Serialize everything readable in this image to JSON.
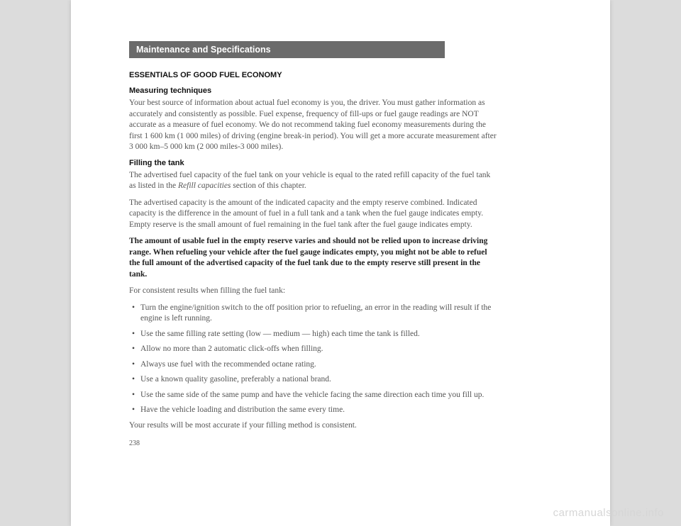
{
  "header": "Maintenance and Specifications",
  "title": "ESSENTIALS OF GOOD FUEL ECONOMY",
  "s1_head": "Measuring techniques",
  "s1_p1": "Your best source of information about actual fuel economy is you, the driver. You must gather information as accurately and consistently as possible. Fuel expense, frequency of fill-ups or fuel gauge readings are NOT accurate as a measure of fuel economy. We do not recommend taking fuel economy measurements during the first 1 600 km (1 000 miles) of driving (engine break-in period). You will get a more accurate measurement after 3 000 km–5 000 km (2 000 miles-3 000 miles).",
  "s2_head": "Filling the tank",
  "s2_p1a": "The advertised fuel capacity of the fuel tank on your vehicle is equal to the rated refill capacity of the fuel tank as listed in the ",
  "s2_p1b": "Refill capacities",
  "s2_p1c": " section of this chapter.",
  "s2_p2": "The advertised capacity is the amount of the indicated capacity and the empty reserve combined. Indicated capacity is the difference in the amount of fuel in a full tank and a tank when the fuel gauge indicates empty. Empty reserve is the small amount of fuel remaining in the fuel tank after the fuel gauge indicates empty.",
  "s2_bold": "The amount of usable fuel in the empty reserve varies and should not be relied upon to increase driving range. When refueling your vehicle after the fuel gauge indicates empty, you might not be able to refuel the full amount of the advertised capacity of the fuel tank due to the empty reserve still present in the tank.",
  "s2_p3": "For consistent results when filling the fuel tank:",
  "bullets": [
    "Turn the engine/ignition switch to the off position prior to refueling, an error in the reading will result if the engine is left running.",
    "Use the same filling rate setting (low — medium — high) each time the tank is filled.",
    "Allow no more than 2 automatic click-offs when filling.",
    "Always use fuel with the recommended octane rating.",
    "Use a known quality gasoline, preferably a national brand.",
    "Use the same side of the same pump and have the vehicle facing the same direction each time you fill up.",
    "Have the vehicle loading and distribution the same every time."
  ],
  "s2_p4": "Your results will be most accurate if your filling method is consistent.",
  "page_num": "238",
  "watermark": "carmanualsonline.info"
}
